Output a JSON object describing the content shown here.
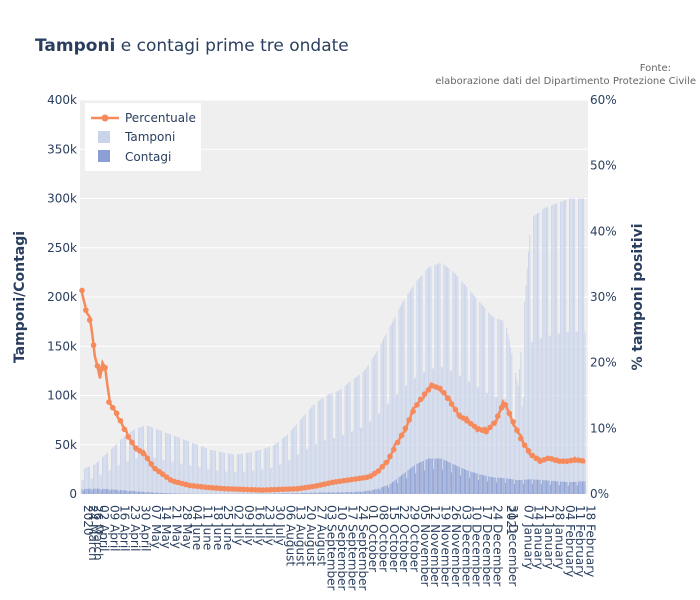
{
  "chart_data": {
    "type": "bar",
    "title_bold": "Tamponi",
    "title_rest": " e contagi prime tre ondate",
    "source_line1": "Fonte:",
    "source_line2": "elaborazione dati del Dipartimento Protezione Civile",
    "ylabel_left": "Tamponi/Contagi",
    "ylabel_right": "% tamponi positivi",
    "y_left_ticks": [
      "0",
      "50k",
      "100k",
      "150k",
      "200k",
      "250k",
      "300k",
      "350k",
      "400k"
    ],
    "y_right_ticks": [
      "0%",
      "10%",
      "20%",
      "30%",
      "40%",
      "50%",
      "60%"
    ],
    "ylim_left": [
      0,
      400000
    ],
    "ylim_right": [
      0,
      60
    ],
    "grid": true,
    "legend_position": "top-left",
    "x_tick_labels": [
      "2020",
      "24 March",
      "26 March",
      "02 April",
      "09 April",
      "16 April",
      "23 April",
      "30 April",
      "07 May",
      "14 May",
      "21 May",
      "28 May",
      "04 June",
      "11 June",
      "18 June",
      "25 June",
      "02 July",
      "09 July",
      "16 July",
      "23 July",
      "30 July",
      "06 August",
      "13 August",
      "20 August",
      "27 August",
      "03 September",
      "10 September",
      "17 September",
      "24 September",
      "01 October",
      "08 October",
      "15 October",
      "22 October",
      "29 October",
      "05 November",
      "12 November",
      "19 November",
      "26 November",
      "03 December",
      "10 December",
      "17 December",
      "24 December",
      "2021",
      "31 December",
      "07 January",
      "14 January",
      "21 January",
      "28 January",
      "04 February",
      "11 February",
      "18 February"
    ],
    "colors": {
      "percent": "#f58a5c",
      "tamponi": "#c9d3ea",
      "contagi": "#8c9fd4",
      "plot_bg": "#efefef"
    },
    "series": [
      {
        "name": "Percentuale",
        "type": "line",
        "axis": "right",
        "points": [
          [
            0,
            31
          ],
          [
            3,
            28
          ],
          [
            7,
            26
          ],
          [
            10,
            21
          ],
          [
            14,
            18
          ],
          [
            17,
            21
          ],
          [
            21,
            14
          ],
          [
            28,
            12
          ],
          [
            35,
            9
          ],
          [
            42,
            7
          ],
          [
            49,
            6
          ],
          [
            56,
            4
          ],
          [
            63,
            3
          ],
          [
            70,
            2
          ],
          [
            84,
            1.3
          ],
          [
            98,
            1
          ],
          [
            112,
            0.8
          ],
          [
            126,
            0.7
          ],
          [
            140,
            0.6
          ],
          [
            154,
            0.7
          ],
          [
            168,
            0.8
          ],
          [
            182,
            1.2
          ],
          [
            196,
            1.8
          ],
          [
            210,
            2.2
          ],
          [
            224,
            2.6
          ],
          [
            231,
            3.5
          ],
          [
            238,
            5
          ],
          [
            245,
            7.5
          ],
          [
            252,
            10
          ],
          [
            259,
            13
          ],
          [
            266,
            15
          ],
          [
            273,
            16.5
          ],
          [
            280,
            16
          ],
          [
            287,
            14
          ],
          [
            294,
            12
          ],
          [
            301,
            11
          ],
          [
            308,
            10
          ],
          [
            315,
            9.5
          ],
          [
            322,
            11
          ],
          [
            329,
            14
          ],
          [
            336,
            11
          ],
          [
            343,
            8
          ],
          [
            350,
            6
          ],
          [
            357,
            5
          ],
          [
            364,
            5.5
          ],
          [
            371,
            5
          ],
          [
            378,
            5
          ],
          [
            385,
            5.2
          ],
          [
            392,
            5
          ]
        ]
      },
      {
        "name": "Tamponi",
        "type": "bar",
        "axis": "left",
        "points": [
          [
            0,
            25000
          ],
          [
            10,
            30000
          ],
          [
            20,
            42000
          ],
          [
            30,
            55000
          ],
          [
            40,
            65000
          ],
          [
            50,
            70000
          ],
          [
            60,
            65000
          ],
          [
            70,
            60000
          ],
          [
            80,
            55000
          ],
          [
            90,
            50000
          ],
          [
            100,
            45000
          ],
          [
            110,
            42000
          ],
          [
            120,
            40000
          ],
          [
            130,
            42000
          ],
          [
            140,
            45000
          ],
          [
            150,
            50000
          ],
          [
            160,
            60000
          ],
          [
            170,
            75000
          ],
          [
            180,
            90000
          ],
          [
            190,
            100000
          ],
          [
            200,
            105000
          ],
          [
            210,
            115000
          ],
          [
            220,
            125000
          ],
          [
            230,
            145000
          ],
          [
            240,
            170000
          ],
          [
            250,
            195000
          ],
          [
            260,
            215000
          ],
          [
            270,
            230000
          ],
          [
            280,
            235000
          ],
          [
            290,
            225000
          ],
          [
            300,
            210000
          ],
          [
            310,
            195000
          ],
          [
            320,
            180000
          ],
          [
            330,
            175000
          ],
          [
            340,
            110000
          ],
          [
            350,
            280000
          ],
          [
            360,
            290000
          ],
          [
            370,
            295000
          ],
          [
            380,
            300000
          ],
          [
            392,
            300000
          ]
        ]
      },
      {
        "name": "Contagi",
        "type": "bar",
        "axis": "left",
        "points": [
          [
            0,
            5000
          ],
          [
            10,
            5500
          ],
          [
            20,
            5000
          ],
          [
            30,
            4000
          ],
          [
            40,
            3000
          ],
          [
            50,
            2000
          ],
          [
            60,
            1200
          ],
          [
            70,
            700
          ],
          [
            80,
            400
          ],
          [
            90,
            250
          ],
          [
            100,
            200
          ],
          [
            110,
            200
          ],
          [
            120,
            250
          ],
          [
            130,
            300
          ],
          [
            140,
            350
          ],
          [
            150,
            450
          ],
          [
            160,
            700
          ],
          [
            170,
            1000
          ],
          [
            180,
            1300
          ],
          [
            190,
            1600
          ],
          [
            200,
            1700
          ],
          [
            210,
            2000
          ],
          [
            220,
            2700
          ],
          [
            230,
            5000
          ],
          [
            240,
            10000
          ],
          [
            250,
            20000
          ],
          [
            260,
            30000
          ],
          [
            270,
            36000
          ],
          [
            280,
            36000
          ],
          [
            290,
            30000
          ],
          [
            300,
            24000
          ],
          [
            310,
            20000
          ],
          [
            320,
            17000
          ],
          [
            330,
            16000
          ],
          [
            340,
            14000
          ],
          [
            350,
            15000
          ],
          [
            360,
            14000
          ],
          [
            370,
            13000
          ],
          [
            380,
            12000
          ],
          [
            392,
            13000
          ]
        ]
      }
    ]
  }
}
